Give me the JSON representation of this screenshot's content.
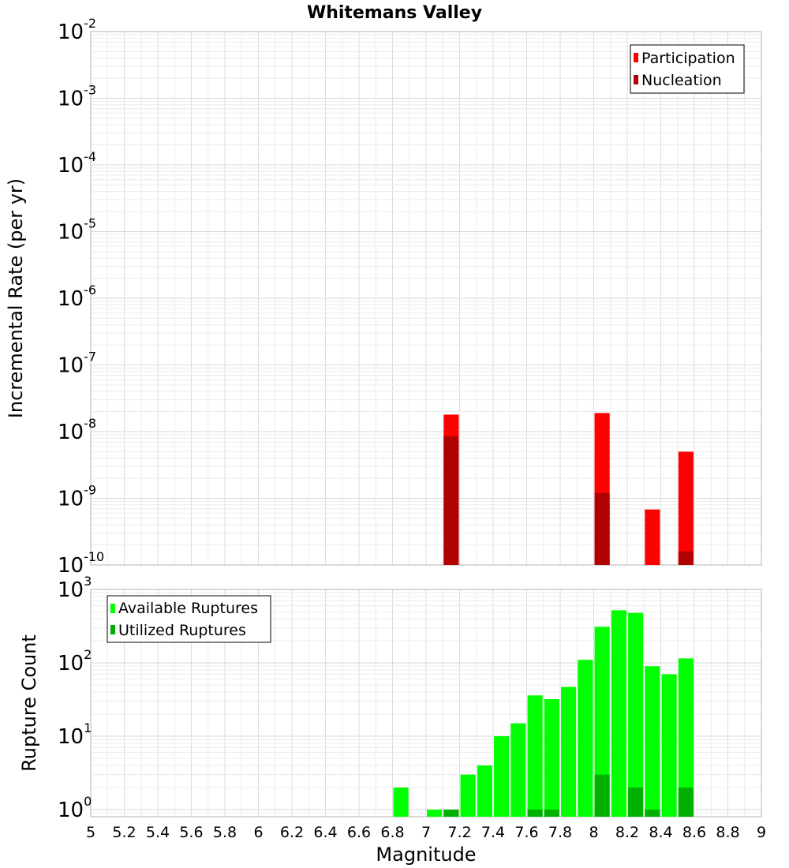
{
  "chart_data": [
    {
      "type": "bar",
      "title": "Whitemans Valley",
      "xlabel": "",
      "ylabel": "Incremental Rate (per yr)",
      "yscale": "log",
      "xlim": [
        5,
        9
      ],
      "ylim": [
        1e-10,
        0.01
      ],
      "y_tick_exponents": [
        -10,
        -9,
        -8,
        -7,
        -6,
        -5,
        -4,
        -3,
        -2
      ],
      "grid": true,
      "legend_position": "top-right",
      "colors": {
        "Participation": "#ff0000",
        "Nucleation": "#b00000"
      },
      "series": [
        {
          "name": "Participation",
          "x": [
            7.15,
            8.05,
            8.35,
            8.55
          ],
          "values": [
            1.8e-08,
            1.9e-08,
            6.8e-10,
            5e-09
          ]
        },
        {
          "name": "Nucleation",
          "x": [
            7.15,
            8.05,
            8.55
          ],
          "values": [
            8.5e-09,
            1.2e-09,
            1.6e-10
          ]
        }
      ]
    },
    {
      "type": "bar",
      "title": "",
      "xlabel": "Magnitude",
      "ylabel": "Rupture Count",
      "yscale": "log",
      "xlim": [
        5,
        9
      ],
      "ylim": [
        0.8,
        1000
      ],
      "y_tick_exponents": [
        0,
        1,
        2,
        3
      ],
      "x_ticks": [
        "5",
        "5.2",
        "5.4",
        "5.6",
        "5.8",
        "6",
        "6.2",
        "6.4",
        "6.6",
        "6.8",
        "7",
        "7.2",
        "7.4",
        "7.6",
        "7.8",
        "8",
        "8.2",
        "8.4",
        "8.6",
        "8.8",
        "9"
      ],
      "grid": true,
      "legend_position": "top-left",
      "colors": {
        "Available Ruptures": "#00ff00",
        "Utilized Ruptures": "#00b000"
      },
      "series": [
        {
          "name": "Available Ruptures",
          "x": [
            6.85,
            7.05,
            7.15,
            7.25,
            7.35,
            7.45,
            7.55,
            7.65,
            7.75,
            7.85,
            7.95,
            8.05,
            8.15,
            8.25,
            8.35,
            8.45,
            8.55
          ],
          "values": [
            2,
            1,
            1,
            3,
            4,
            10,
            15,
            36,
            32,
            47,
            110,
            310,
            520,
            480,
            90,
            70,
            115
          ]
        },
        {
          "name": "Utilized Ruptures",
          "x": [
            7.15,
            7.65,
            7.75,
            8.05,
            8.25,
            8.35,
            8.55
          ],
          "values": [
            1,
            1,
            1,
            3,
            2,
            1,
            2
          ]
        }
      ]
    }
  ]
}
